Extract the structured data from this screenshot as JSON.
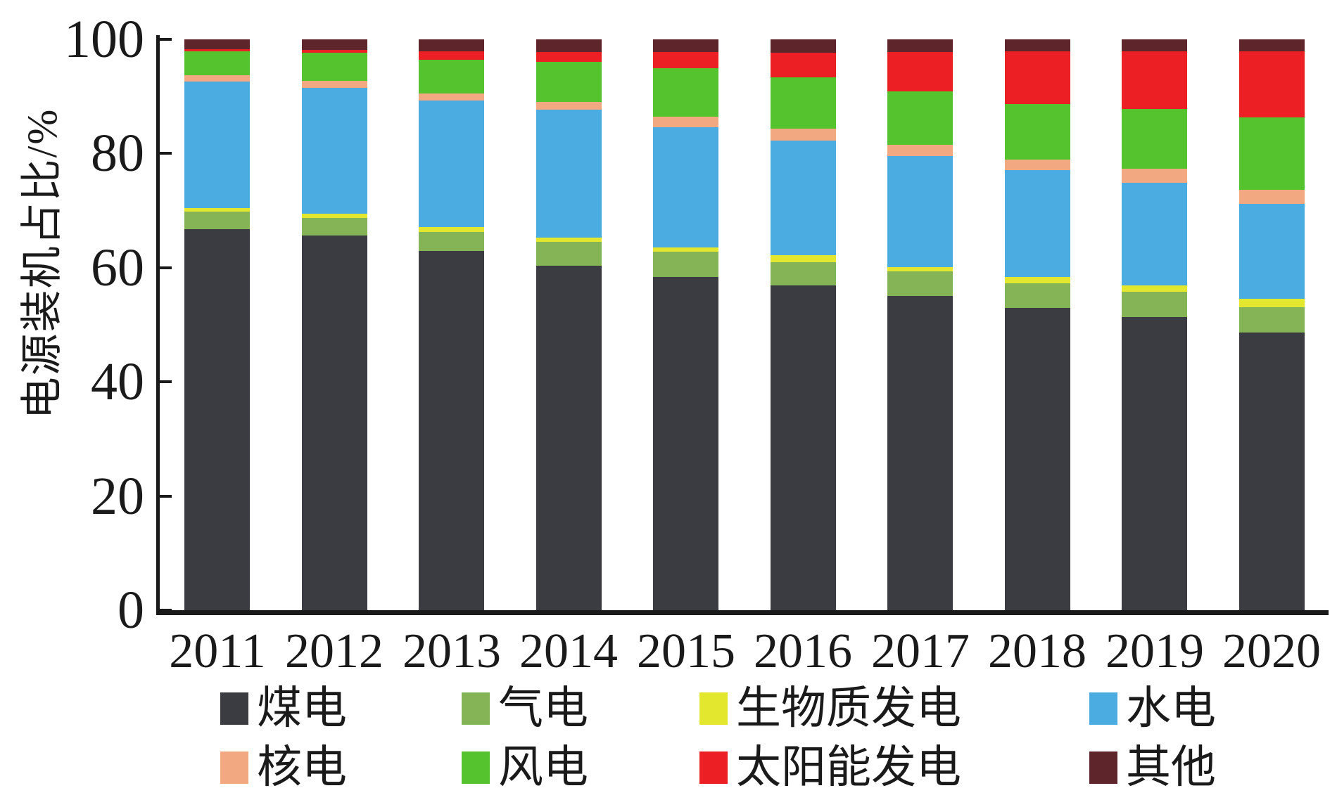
{
  "figure": {
    "background": "#ffffff",
    "axis_color": "#1a1a1a"
  },
  "chart_data": {
    "type": "bar",
    "stacked": true,
    "title": "",
    "xlabel": "",
    "ylabel": "电源装机占比/%",
    "ylim": [
      0,
      100
    ],
    "yticks": [
      "0",
      "20",
      "40",
      "60",
      "80",
      "100"
    ],
    "grid": false,
    "legend_position": "bottom",
    "categories": [
      "2011",
      "2012",
      "2013",
      "2014",
      "2015",
      "2016",
      "2017",
      "2018",
      "2019",
      "2020"
    ],
    "series": [
      {
        "key": "coal",
        "name": "煤电",
        "color": "#3b3b42",
        "values": [
          66.7,
          65.7,
          62.9,
          60.3,
          58.4,
          56.9,
          55.0,
          53.0,
          51.3,
          48.7
        ]
      },
      {
        "key": "gas",
        "name": "气电",
        "color": "#84b456",
        "values": [
          3.1,
          3.0,
          3.4,
          4.2,
          4.4,
          4.1,
          4.3,
          4.3,
          4.5,
          4.4
        ]
      },
      {
        "key": "biomass",
        "name": "生物质发电",
        "color": "#e3e82f",
        "values": [
          0.6,
          0.8,
          0.8,
          0.8,
          0.8,
          1.2,
          0.8,
          1.1,
          1.1,
          1.5
        ]
      },
      {
        "key": "hydro",
        "name": "水电",
        "color": "#4bace1",
        "values": [
          22.2,
          22.0,
          22.2,
          22.4,
          21.0,
          20.1,
          19.5,
          18.7,
          18.0,
          16.6
        ]
      },
      {
        "key": "nuclear",
        "name": "核电",
        "color": "#f2a981",
        "values": [
          1.1,
          1.2,
          1.2,
          1.3,
          1.9,
          2.1,
          1.9,
          1.8,
          2.4,
          2.5
        ]
      },
      {
        "key": "wind",
        "name": "风电",
        "color": "#54c32d",
        "values": [
          4.2,
          5.0,
          5.9,
          7.1,
          8.5,
          8.9,
          9.4,
          9.8,
          10.5,
          12.6
        ]
      },
      {
        "key": "solar",
        "name": "太阳能发电",
        "color": "#ec2024",
        "values": [
          0.4,
          0.4,
          1.5,
          1.7,
          2.8,
          4.4,
          6.9,
          9.2,
          10.1,
          11.6
        ]
      },
      {
        "key": "other",
        "name": "其他",
        "color": "#5e262b",
        "values": [
          1.7,
          1.9,
          2.1,
          2.2,
          2.2,
          2.3,
          2.2,
          2.1,
          2.1,
          2.1
        ]
      }
    ],
    "legend_rows": [
      [
        "煤电",
        "气电",
        "生物质发电",
        "水电"
      ],
      [
        "核电",
        "风电",
        "太阳能发电",
        "其他"
      ]
    ]
  }
}
